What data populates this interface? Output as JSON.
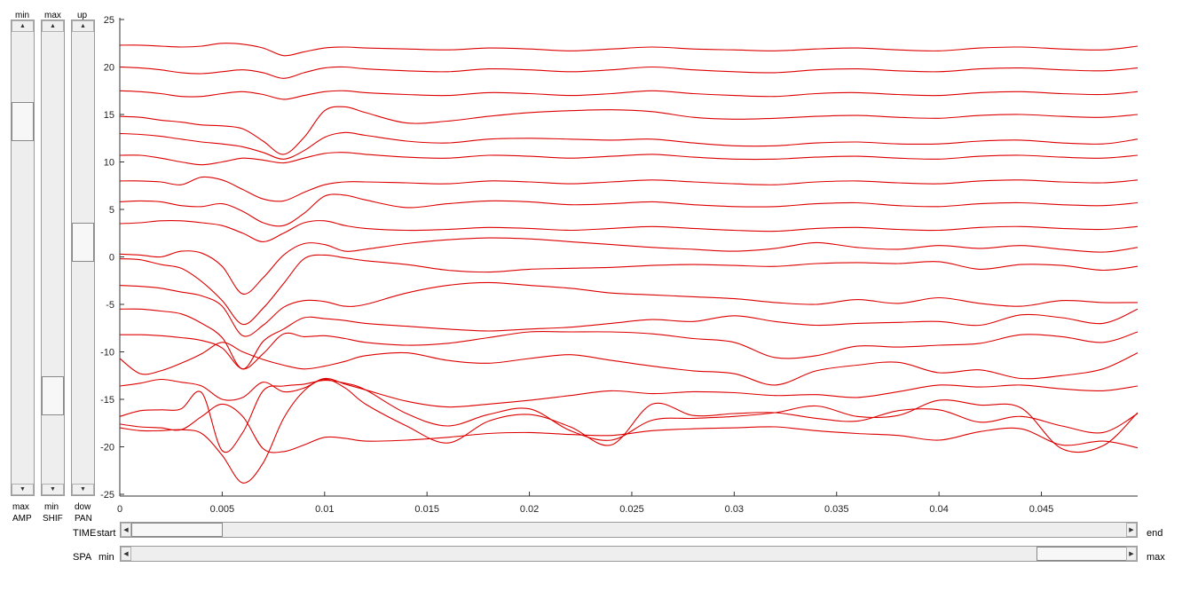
{
  "sliders": {
    "amp": {
      "top_label": "min",
      "bottom_label_1": "max",
      "bottom_label_2": "AMP",
      "value": 0.17
    },
    "shift": {
      "top_label": "max",
      "bottom_label_1": "min",
      "bottom_label_2": "SHIF",
      "value": 0.83
    },
    "pan": {
      "top_label": "up",
      "bottom_label_1": "dow",
      "bottom_label_2": "PAN",
      "value": 0.46
    },
    "time": {
      "name": "TIME",
      "start_label": "start",
      "end_label": "end",
      "value": 0.0
    },
    "space": {
      "name": "SPA",
      "start_label": "min",
      "end_label": "max",
      "value": 1.0
    }
  },
  "colors": {
    "trace": "#dd0000",
    "axis": "#333333"
  },
  "chart_data": {
    "type": "line",
    "xlim": [
      0,
      0.0497
    ],
    "ylim": [
      -25,
      25
    ],
    "xticks": [
      "0",
      "0.005",
      "0.01",
      "0.015",
      "0.02",
      "0.025",
      "0.03",
      "0.035",
      "0.04",
      "0.045"
    ],
    "yticks": [
      "25",
      "20",
      "15",
      "10",
      "5",
      "0",
      "-5",
      "-10",
      "-15",
      "-20",
      "-25"
    ],
    "x": [
      0,
      0.001,
      0.002,
      0.003,
      0.004,
      0.005,
      0.006,
      0.007,
      0.008,
      0.009,
      0.01,
      0.011,
      0.012,
      0.014,
      0.016,
      0.018,
      0.02,
      0.022,
      0.024,
      0.026,
      0.028,
      0.03,
      0.032,
      0.034,
      0.036,
      0.038,
      0.04,
      0.042,
      0.044,
      0.046,
      0.048,
      0.0497
    ],
    "series": [
      {
        "values": [
          22.3,
          22.3,
          22.2,
          22.1,
          22.2,
          22.5,
          22.4,
          22.0,
          21.2,
          21.6,
          22.0,
          22.1,
          22.0,
          21.9,
          21.8,
          22.0,
          21.9,
          21.7,
          21.9,
          22.1,
          21.9,
          21.8,
          21.7,
          21.9,
          22.0,
          21.8,
          21.7,
          22.0,
          22.1,
          21.9,
          21.8,
          22.2
        ]
      },
      {
        "values": [
          20.0,
          19.9,
          19.7,
          19.4,
          19.3,
          19.5,
          19.7,
          19.4,
          18.8,
          19.4,
          19.9,
          20.0,
          19.8,
          19.6,
          19.5,
          19.8,
          19.7,
          19.5,
          19.7,
          20.0,
          19.7,
          19.5,
          19.4,
          19.7,
          19.8,
          19.6,
          19.5,
          19.8,
          19.9,
          19.7,
          19.6,
          19.9
        ]
      },
      {
        "values": [
          17.5,
          17.4,
          17.2,
          16.9,
          16.9,
          17.2,
          17.4,
          17.1,
          16.6,
          17.0,
          17.4,
          17.5,
          17.3,
          17.1,
          17.0,
          17.3,
          17.2,
          17.0,
          17.2,
          17.5,
          17.2,
          17.0,
          16.9,
          17.2,
          17.3,
          17.1,
          17.0,
          17.3,
          17.4,
          17.2,
          17.1,
          17.4
        ]
      },
      {
        "values": [
          14.8,
          14.7,
          14.4,
          14.2,
          13.9,
          13.8,
          13.5,
          12.2,
          10.8,
          12.6,
          15.4,
          15.8,
          15.2,
          14.1,
          14.3,
          14.8,
          15.2,
          15.4,
          15.5,
          15.3,
          14.7,
          14.5,
          14.6,
          14.8,
          14.9,
          14.7,
          14.6,
          14.9,
          15.0,
          14.8,
          14.7,
          15.0
        ]
      },
      {
        "values": [
          13.0,
          12.9,
          12.7,
          12.4,
          12.1,
          11.9,
          11.6,
          11.0,
          10.3,
          11.2,
          12.6,
          13.1,
          12.8,
          12.2,
          12.0,
          12.4,
          12.5,
          12.4,
          12.3,
          12.4,
          12.0,
          11.7,
          11.7,
          12.0,
          12.1,
          11.9,
          11.9,
          12.2,
          12.3,
          12.0,
          11.9,
          12.4
        ]
      },
      {
        "values": [
          10.7,
          10.7,
          10.4,
          10.0,
          9.7,
          10.0,
          10.4,
          10.2,
          9.9,
          10.4,
          10.9,
          11.0,
          10.8,
          10.5,
          10.4,
          10.7,
          10.6,
          10.4,
          10.6,
          10.8,
          10.5,
          10.3,
          10.3,
          10.5,
          10.6,
          10.4,
          10.3,
          10.6,
          10.7,
          10.5,
          10.4,
          10.7
        ]
      },
      {
        "values": [
          8.0,
          8.0,
          7.9,
          7.6,
          8.4,
          8.1,
          7.1,
          6.1,
          5.9,
          6.8,
          7.6,
          7.9,
          7.9,
          7.8,
          7.7,
          8.0,
          7.9,
          7.7,
          7.9,
          8.1,
          7.9,
          7.7,
          7.6,
          7.9,
          8.0,
          7.8,
          7.7,
          8.0,
          8.1,
          7.9,
          7.8,
          8.1
        ]
      },
      {
        "values": [
          5.8,
          5.9,
          5.8,
          5.4,
          5.3,
          5.6,
          4.8,
          3.6,
          3.3,
          4.6,
          6.4,
          6.5,
          6.0,
          5.2,
          5.6,
          5.9,
          5.8,
          5.5,
          5.6,
          5.8,
          5.5,
          5.3,
          5.3,
          5.6,
          5.7,
          5.4,
          5.3,
          5.6,
          5.7,
          5.5,
          5.4,
          5.7
        ]
      },
      {
        "values": [
          3.5,
          3.6,
          3.8,
          3.8,
          3.6,
          3.3,
          2.5,
          1.6,
          2.5,
          3.6,
          3.8,
          3.3,
          3.0,
          2.8,
          2.9,
          3.1,
          3.0,
          2.8,
          3.0,
          3.2,
          3.0,
          2.8,
          2.7,
          3.0,
          3.1,
          2.9,
          2.8,
          3.1,
          3.2,
          3.0,
          2.9,
          3.2
        ]
      },
      {
        "values": [
          0.3,
          0.2,
          0.0,
          0.6,
          0.4,
          -1.0,
          -3.9,
          -2.2,
          0.2,
          1.4,
          1.3,
          0.6,
          0.8,
          1.4,
          1.8,
          2.0,
          1.9,
          1.6,
          1.3,
          1.0,
          0.8,
          0.6,
          0.9,
          1.5,
          1.0,
          0.8,
          1.2,
          0.9,
          1.2,
          0.8,
          0.5,
          1.0
        ]
      },
      {
        "values": [
          -0.2,
          -0.3,
          -0.8,
          -1.2,
          -2.6,
          -4.6,
          -7.1,
          -5.4,
          -2.8,
          -0.2,
          0.2,
          -0.1,
          -0.4,
          -0.8,
          -1.4,
          -1.6,
          -1.3,
          -1.2,
          -1.1,
          -0.9,
          -0.8,
          -0.9,
          -1.0,
          -0.7,
          -0.6,
          -0.7,
          -0.5,
          -1.3,
          -0.8,
          -0.9,
          -1.4,
          -1.0
        ]
      },
      {
        "values": [
          -3.0,
          -3.1,
          -3.3,
          -3.7,
          -4.1,
          -5.2,
          -8.3,
          -7.2,
          -5.3,
          -4.6,
          -4.7,
          -5.2,
          -5.0,
          -3.8,
          -3.0,
          -2.7,
          -3.0,
          -3.3,
          -3.8,
          -4.0,
          -4.2,
          -4.4,
          -4.8,
          -5.0,
          -4.5,
          -4.9,
          -4.3,
          -4.9,
          -5.2,
          -4.6,
          -4.8,
          -4.8
        ]
      },
      {
        "values": [
          -5.5,
          -5.5,
          -5.7,
          -6.0,
          -7.0,
          -8.5,
          -11.8,
          -8.9,
          -7.6,
          -6.4,
          -6.5,
          -6.7,
          -7.0,
          -7.3,
          -7.6,
          -7.8,
          -7.6,
          -7.4,
          -7.0,
          -6.6,
          -6.8,
          -6.2,
          -6.8,
          -7.2,
          -7.0,
          -6.9,
          -6.8,
          -7.2,
          -6.1,
          -6.4,
          -7.0,
          -5.5
        ]
      },
      {
        "values": [
          -8.2,
          -8.2,
          -8.3,
          -8.5,
          -8.8,
          -9.6,
          -11.8,
          -10.2,
          -8.1,
          -8.4,
          -8.3,
          -8.6,
          -9.0,
          -9.3,
          -9.1,
          -8.5,
          -7.9,
          -7.9,
          -7.9,
          -8.1,
          -8.6,
          -9.0,
          -10.6,
          -10.4,
          -9.4,
          -9.5,
          -9.3,
          -9.1,
          -8.2,
          -8.4,
          -9.0,
          -7.9
        ]
      },
      {
        "values": [
          -10.7,
          -12.3,
          -12.0,
          -11.2,
          -10.2,
          -9.0,
          -10.0,
          -10.8,
          -11.4,
          -11.8,
          -11.5,
          -11.0,
          -10.4,
          -10.1,
          -10.9,
          -11.2,
          -10.7,
          -10.3,
          -10.9,
          -11.5,
          -12.0,
          -12.3,
          -13.5,
          -12.0,
          -11.4,
          -11.1,
          -12.2,
          -11.9,
          -12.8,
          -12.5,
          -11.8,
          -10.1
        ]
      },
      {
        "values": [
          -13.6,
          -13.3,
          -12.9,
          -13.2,
          -13.6,
          -15.0,
          -14.8,
          -13.2,
          -14.2,
          -13.8,
          -12.8,
          -13.4,
          -14.0,
          -15.2,
          -15.8,
          -15.5,
          -15.1,
          -14.6,
          -14.1,
          -14.4,
          -14.2,
          -14.3,
          -14.6,
          -14.5,
          -14.8,
          -14.2,
          -13.5,
          -13.7,
          -13.5,
          -13.9,
          -14.1,
          -13.6
        ]
      },
      {
        "values": [
          -16.8,
          -16.2,
          -16.1,
          -16.0,
          -14.3,
          -20.4,
          -18.5,
          -14.1,
          -13.6,
          -13.4,
          -13.0,
          -13.3,
          -14.0,
          -16.5,
          -17.8,
          -16.6,
          -16.0,
          -18.3,
          -19.3,
          -17.2,
          -17.0,
          -16.8,
          -16.4,
          -15.7,
          -16.8,
          -16.7,
          -15.1,
          -15.6,
          -15.9,
          -20.2,
          -19.9,
          -16.4
        ]
      },
      {
        "values": [
          -17.6,
          -17.9,
          -18.0,
          -18.2,
          -16.8,
          -15.5,
          -16.8,
          -20.2,
          -20.5,
          -19.8,
          -19.0,
          -19.1,
          -19.4,
          -19.3,
          -19.0,
          -18.6,
          -18.5,
          -18.7,
          -18.8,
          -18.3,
          -18.1,
          -18.0,
          -17.9,
          -18.3,
          -18.6,
          -18.8,
          -19.3,
          -18.4,
          -18.1,
          -19.8,
          -19.4,
          -20.1
        ]
      },
      {
        "values": [
          -18.0,
          -18.3,
          -18.3,
          -18.2,
          -18.6,
          -20.9,
          -23.8,
          -21.7,
          -17.0,
          -14.1,
          -12.9,
          -13.8,
          -15.5,
          -17.8,
          -19.6,
          -17.3,
          -16.6,
          -17.9,
          -19.8,
          -15.5,
          -16.7,
          -16.5,
          -16.4,
          -17.0,
          -17.3,
          -16.2,
          -16.1,
          -17.4,
          -16.8,
          -17.8,
          -18.5,
          -16.5
        ]
      }
    ]
  }
}
